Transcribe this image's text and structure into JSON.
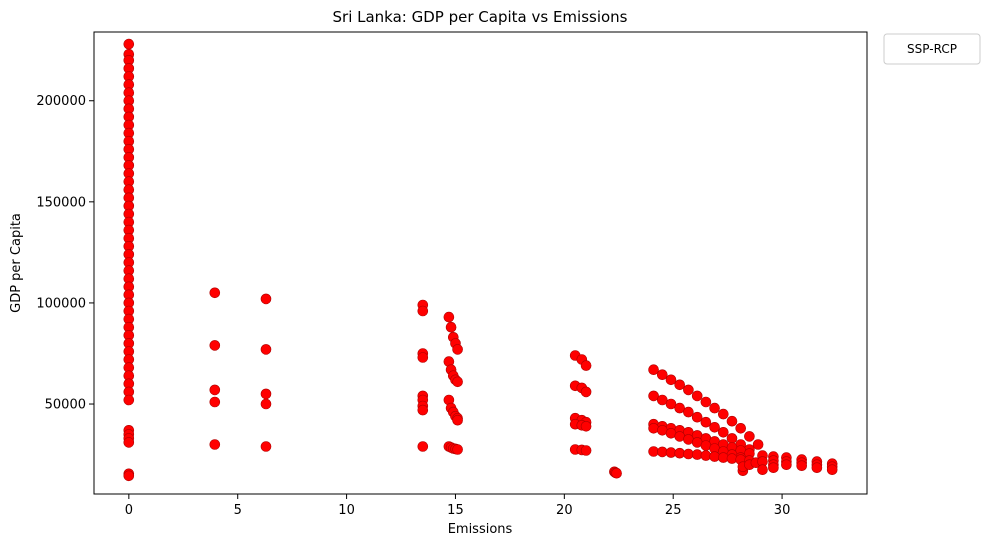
{
  "chart_data": {
    "type": "scatter",
    "title": "Sri Lanka: GDP per Capita vs Emissions",
    "xlabel": "Emissions",
    "ylabel": "GDP per Capita",
    "xlim": [
      -1.6,
      33.9
    ],
    "ylim": [
      5500,
      234000
    ],
    "xticks": [
      0,
      5,
      10,
      15,
      20,
      25,
      30
    ],
    "yticks": [
      50000,
      100000,
      150000,
      200000
    ],
    "grid": false,
    "legend": {
      "title": "SSP-RCP",
      "placement": "outside-top-right",
      "entries": []
    },
    "marker_color": "#ff0000",
    "marker_edge_color": "#b00000",
    "series": [
      {
        "points": [
          [
            0,
            228000
          ],
          [
            0,
            223000
          ],
          [
            0,
            220000
          ],
          [
            0,
            216000
          ],
          [
            0,
            212000
          ],
          [
            0,
            208000
          ],
          [
            0,
            204000
          ],
          [
            0,
            200000
          ],
          [
            0,
            196000
          ],
          [
            0,
            192000
          ],
          [
            0,
            188000
          ],
          [
            0,
            184000
          ],
          [
            0,
            180000
          ],
          [
            0,
            176000
          ],
          [
            0,
            172000
          ],
          [
            0,
            168000
          ],
          [
            0,
            164000
          ],
          [
            0,
            160000
          ],
          [
            0,
            156000
          ],
          [
            0,
            152000
          ],
          [
            0,
            148000
          ],
          [
            0,
            144000
          ],
          [
            0,
            140000
          ],
          [
            0,
            136000
          ],
          [
            0,
            132000
          ],
          [
            0,
            128000
          ],
          [
            0,
            124000
          ],
          [
            0,
            120000
          ],
          [
            0,
            116000
          ],
          [
            0,
            112000
          ],
          [
            0,
            108000
          ],
          [
            0,
            104000
          ],
          [
            0,
            100000
          ],
          [
            0,
            96000
          ],
          [
            0,
            92000
          ],
          [
            0,
            88000
          ],
          [
            0,
            84000
          ],
          [
            0,
            80000
          ],
          [
            0,
            76000
          ],
          [
            0,
            72000
          ],
          [
            0,
            68000
          ],
          [
            0,
            64000
          ],
          [
            0,
            60000
          ],
          [
            0,
            56000
          ],
          [
            0,
            52000
          ],
          [
            0,
            37000
          ],
          [
            0,
            35000
          ],
          [
            0,
            33000
          ],
          [
            0,
            31000
          ],
          [
            0,
            15500
          ],
          [
            0,
            14500
          ],
          [
            3.95,
            105000
          ],
          [
            3.95,
            79000
          ],
          [
            3.95,
            57000
          ],
          [
            3.95,
            51000
          ],
          [
            3.95,
            30000
          ],
          [
            6.3,
            102000
          ],
          [
            6.3,
            77000
          ],
          [
            6.3,
            55000
          ],
          [
            6.3,
            50000
          ],
          [
            6.3,
            29000
          ],
          [
            13.5,
            99000
          ],
          [
            13.5,
            96000
          ],
          [
            13.5,
            75000
          ],
          [
            13.5,
            73000
          ],
          [
            13.5,
            54000
          ],
          [
            13.5,
            52000
          ],
          [
            13.5,
            49000
          ],
          [
            13.5,
            47000
          ],
          [
            13.5,
            29000
          ],
          [
            14.7,
            93000
          ],
          [
            14.8,
            88000
          ],
          [
            14.9,
            83000
          ],
          [
            15.0,
            80000
          ],
          [
            15.1,
            77000
          ],
          [
            14.7,
            71000
          ],
          [
            14.8,
            67000
          ],
          [
            14.9,
            64000
          ],
          [
            15.0,
            62000
          ],
          [
            15.1,
            61000
          ],
          [
            14.7,
            52000
          ],
          [
            14.8,
            48000
          ],
          [
            14.9,
            46000
          ],
          [
            15.0,
            44000
          ],
          [
            15.1,
            43000
          ],
          [
            15.1,
            42000
          ],
          [
            14.7,
            29000
          ],
          [
            14.8,
            28500
          ],
          [
            14.9,
            28000
          ],
          [
            15.0,
            27800
          ],
          [
            15.1,
            27500
          ],
          [
            20.5,
            74000
          ],
          [
            20.8,
            72000
          ],
          [
            21.0,
            69000
          ],
          [
            20.5,
            59000
          ],
          [
            20.8,
            58000
          ],
          [
            21.0,
            56000
          ],
          [
            20.5,
            43000
          ],
          [
            20.8,
            42000
          ],
          [
            21.0,
            41000
          ],
          [
            20.5,
            40000
          ],
          [
            20.8,
            39500
          ],
          [
            21.0,
            39000
          ],
          [
            20.5,
            27500
          ],
          [
            20.8,
            27300
          ],
          [
            21.0,
            27000
          ],
          [
            22.3,
            16500
          ],
          [
            22.35,
            16000
          ],
          [
            22.4,
            15800
          ],
          [
            24.1,
            67000
          ],
          [
            24.5,
            64500
          ],
          [
            24.9,
            62000
          ],
          [
            25.3,
            59500
          ],
          [
            25.7,
            57000
          ],
          [
            26.1,
            54000
          ],
          [
            26.5,
            51000
          ],
          [
            26.9,
            48000
          ],
          [
            27.3,
            45000
          ],
          [
            27.7,
            41500
          ],
          [
            28.1,
            38000
          ],
          [
            28.5,
            34000
          ],
          [
            28.9,
            30000
          ],
          [
            24.1,
            54000
          ],
          [
            24.5,
            52000
          ],
          [
            24.9,
            50000
          ],
          [
            25.3,
            48000
          ],
          [
            25.7,
            46000
          ],
          [
            26.1,
            43500
          ],
          [
            26.5,
            41000
          ],
          [
            26.9,
            38500
          ],
          [
            27.3,
            36000
          ],
          [
            27.7,
            33000
          ],
          [
            28.1,
            30000
          ],
          [
            28.5,
            27500
          ],
          [
            24.1,
            40000
          ],
          [
            24.5,
            39000
          ],
          [
            24.9,
            38000
          ],
          [
            25.3,
            37000
          ],
          [
            25.7,
            36000
          ],
          [
            26.1,
            34500
          ],
          [
            26.5,
            33000
          ],
          [
            26.9,
            31500
          ],
          [
            27.3,
            30000
          ],
          [
            27.7,
            28500
          ],
          [
            28.1,
            27000
          ],
          [
            28.5,
            25500
          ],
          [
            24.1,
            38000
          ],
          [
            24.5,
            37000
          ],
          [
            24.9,
            35500
          ],
          [
            25.3,
            34000
          ],
          [
            25.7,
            32500
          ],
          [
            26.1,
            31000
          ],
          [
            26.5,
            29500
          ],
          [
            26.9,
            28000
          ],
          [
            27.3,
            26500
          ],
          [
            27.7,
            25000
          ],
          [
            28.1,
            23500
          ],
          [
            24.1,
            26500
          ],
          [
            24.5,
            26300
          ],
          [
            24.9,
            26000
          ],
          [
            25.3,
            25700
          ],
          [
            25.7,
            25300
          ],
          [
            26.1,
            25000
          ],
          [
            26.5,
            24500
          ],
          [
            26.9,
            24000
          ],
          [
            27.3,
            23500
          ],
          [
            27.7,
            23000
          ],
          [
            28.1,
            22500
          ],
          [
            28.5,
            22000
          ],
          [
            28.2,
            17000
          ],
          [
            28.2,
            19000
          ],
          [
            28.5,
            20000
          ],
          [
            28.8,
            21000
          ],
          [
            29.1,
            24500
          ],
          [
            29.1,
            21500
          ],
          [
            29.1,
            17500
          ],
          [
            29.6,
            24000
          ],
          [
            29.6,
            22000
          ],
          [
            29.6,
            20000
          ],
          [
            29.6,
            18500
          ],
          [
            30.2,
            23500
          ],
          [
            30.2,
            21500
          ],
          [
            30.2,
            20000
          ],
          [
            30.9,
            22500
          ],
          [
            30.9,
            21000
          ],
          [
            30.9,
            19500
          ],
          [
            31.6,
            21500
          ],
          [
            31.6,
            20000
          ],
          [
            31.6,
            18500
          ],
          [
            32.3,
            20500
          ],
          [
            32.3,
            19000
          ],
          [
            32.3,
            17500
          ]
        ]
      }
    ]
  }
}
